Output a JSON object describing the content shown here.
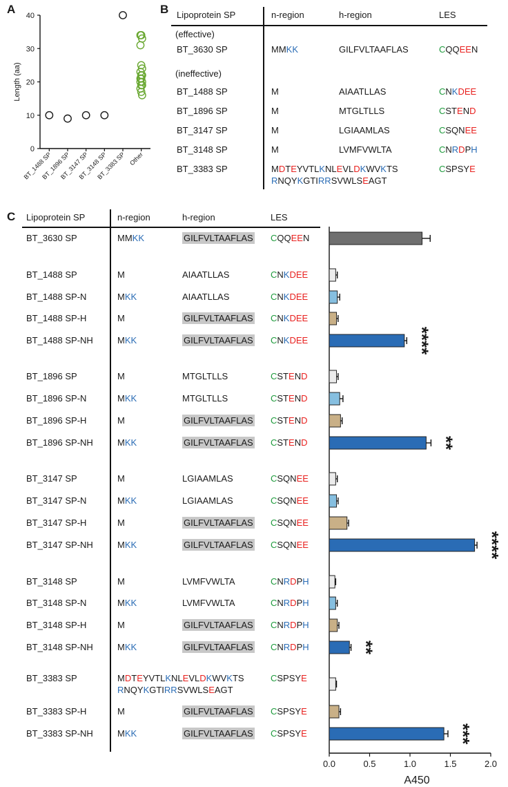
{
  "colors": {
    "positive": "#2a6cb5",
    "negative": "#e8201e",
    "cysteine": "#1e9a3c",
    "highlight": "#c8c8c8",
    "other_points": "#6aa832"
  },
  "panel_a": {
    "label": "A"
  },
  "panel_b": {
    "label": "B"
  },
  "panel_c": {
    "label": "C"
  },
  "chart_data": [
    {
      "type": "scatter",
      "ylabel": "Length (aa)",
      "ylim": [
        0,
        40
      ],
      "yticks": [
        "0",
        "10",
        "20",
        "30",
        "40"
      ],
      "categories": [
        "BT_1488 SP",
        "BT_1896 SP",
        "BT_3147 SP",
        "BT_3148 SP",
        "BT_3383 SP",
        "Other"
      ],
      "points": [
        {
          "category": "BT_1488 SP",
          "values": [
            10
          ]
        },
        {
          "category": "BT_1896 SP",
          "values": [
            9
          ]
        },
        {
          "category": "BT_3147 SP",
          "values": [
            10
          ]
        },
        {
          "category": "BT_3148 SP",
          "values": [
            10
          ]
        },
        {
          "category": "BT_3383 SP",
          "values": [
            40
          ]
        },
        {
          "category": "Other",
          "values": [
            34,
            34,
            33,
            31,
            25,
            24,
            23,
            22,
            22,
            21,
            21,
            20,
            20,
            19,
            19,
            18,
            17,
            16
          ]
        }
      ]
    },
    {
      "type": "bar",
      "orientation": "horizontal",
      "xlabel": "A450",
      "xlim": [
        0,
        2.0
      ],
      "xticks": [
        "0.0",
        "0.5",
        "1.0",
        "1.5",
        "2.0"
      ],
      "categories": [
        "BT_3630 SP",
        "BT_1488 SP",
        "BT_1488 SP-N",
        "BT_1488 SP-H",
        "BT_1488 SP-NH",
        "BT_1896 SP",
        "BT_1896 SP-N",
        "BT_1896 SP-H",
        "BT_1896 SP-NH",
        "BT_3147 SP",
        "BT_3147 SP-N",
        "BT_3147 SP-H",
        "BT_3147 SP-NH",
        "BT_3148 SP",
        "BT_3148 SP-N",
        "BT_3148 SP-H",
        "BT_3148 SP-NH",
        "BT_3383 SP",
        "BT_3383 SP-H",
        "BT_3383 SP-NH"
      ],
      "values": [
        1.15,
        0.08,
        0.1,
        0.09,
        0.93,
        0.09,
        0.13,
        0.14,
        1.2,
        0.08,
        0.09,
        0.22,
        1.8,
        0.07,
        0.08,
        0.1,
        0.25,
        0.08,
        0.12,
        1.42
      ],
      "errors": [
        0.1,
        0.02,
        0.03,
        0.02,
        0.03,
        0.02,
        0.04,
        0.02,
        0.06,
        0.02,
        0.02,
        0.02,
        0.03,
        0.01,
        0.02,
        0.02,
        0.02,
        0.01,
        0.02,
        0.05
      ],
      "bar_colors": [
        "#6f6f6f",
        "#ececec",
        "#86bfe0",
        "#c9b087",
        "#2a6cb5",
        "#ececec",
        "#86bfe0",
        "#c9b087",
        "#2a6cb5",
        "#ececec",
        "#86bfe0",
        "#c9b087",
        "#2a6cb5",
        "#ececec",
        "#86bfe0",
        "#c9b087",
        "#2a6cb5",
        "#ececec",
        "#c9b087",
        "#2a6cb5"
      ],
      "significance": [
        "",
        "",
        "",
        "",
        "****",
        "",
        "",
        "",
        "**",
        "",
        "",
        "",
        "****",
        "",
        "",
        "",
        "**",
        "",
        "",
        "***"
      ]
    }
  ],
  "table_b": {
    "headers": [
      "Lipoprotein SP",
      "n-region",
      "h-region",
      "LES"
    ],
    "group_effective": "(effective)",
    "group_ineffective": "(ineffective)",
    "rows": [
      {
        "name": "BT_3630 SP",
        "n": [
          [
            "MM",
            "k"
          ],
          [
            "KK",
            "p"
          ]
        ],
        "h": [
          [
            "GILFVLTAAFLAS",
            "k"
          ]
        ],
        "les": [
          [
            "C",
            "c"
          ],
          [
            "QQ",
            "k"
          ],
          [
            "EE",
            "n"
          ],
          [
            "N",
            "k"
          ]
        ]
      },
      {
        "name": "BT_1488 SP",
        "n": [
          [
            "M",
            "k"
          ]
        ],
        "h": [
          [
            "AIAATLLAS",
            "k"
          ]
        ],
        "les": [
          [
            "C",
            "c"
          ],
          [
            "N",
            "k"
          ],
          [
            "K",
            "p"
          ],
          [
            "DEE",
            "n"
          ]
        ]
      },
      {
        "name": "BT_1896 SP",
        "n": [
          [
            "M",
            "k"
          ]
        ],
        "h": [
          [
            "MTGLTLLS",
            "k"
          ]
        ],
        "les": [
          [
            "C",
            "c"
          ],
          [
            "ST",
            "k"
          ],
          [
            "E",
            "n"
          ],
          [
            "N",
            "k"
          ],
          [
            "D",
            "n"
          ]
        ]
      },
      {
        "name": "BT_3147 SP",
        "n": [
          [
            "M",
            "k"
          ]
        ],
        "h": [
          [
            "LGIAAMLAS",
            "k"
          ]
        ],
        "les": [
          [
            "C",
            "c"
          ],
          [
            "SQN",
            "k"
          ],
          [
            "EE",
            "n"
          ]
        ]
      },
      {
        "name": "BT_3148 SP",
        "n": [
          [
            "M",
            "k"
          ]
        ],
        "h": [
          [
            "LVMFVWLTA",
            "k"
          ]
        ],
        "les": [
          [
            "C",
            "c"
          ],
          [
            "N",
            "k"
          ],
          [
            "R",
            "p"
          ],
          [
            "D",
            "n"
          ],
          [
            "P",
            "k"
          ],
          [
            "H",
            "p"
          ]
        ]
      },
      {
        "name": "BT_3383 SP",
        "n": [
          [
            "M",
            "k"
          ],
          [
            "D",
            "n"
          ],
          [
            "T",
            "k"
          ],
          [
            "E",
            "n"
          ],
          [
            "YVTL",
            "k"
          ],
          [
            "K",
            "p"
          ],
          [
            "NL",
            "k"
          ],
          [
            "E",
            "n"
          ],
          [
            "VL",
            "k"
          ],
          [
            "D",
            "n"
          ],
          [
            "K",
            "p"
          ],
          [
            "WV",
            "k"
          ],
          [
            "K",
            "p"
          ],
          [
            "TS",
            "k"
          ]
        ],
        "n2": [
          [
            "R",
            "p"
          ],
          [
            "NQY",
            "k"
          ],
          [
            "K",
            "p"
          ],
          [
            "GTI",
            "k"
          ],
          [
            "RR",
            "p"
          ],
          [
            "SVWLS",
            "k"
          ],
          [
            "E",
            "n"
          ],
          [
            "AGT",
            "k"
          ]
        ],
        "les": [
          [
            "C",
            "c"
          ],
          [
            "SPSY",
            "k"
          ],
          [
            "E",
            "n"
          ]
        ]
      }
    ]
  },
  "table_c": {
    "headers": [
      "Lipoprotein SP",
      "n-region",
      "h-region",
      "LES"
    ],
    "rows": [
      {
        "name": "BT_3630 SP",
        "n": [
          [
            "MM",
            "k"
          ],
          [
            "KK",
            "p"
          ]
        ],
        "h": "GILFVLTAAFLAS",
        "hh": true,
        "les": [
          [
            "C",
            "c"
          ],
          [
            "QQ",
            "k"
          ],
          [
            "EE",
            "n"
          ],
          [
            "N",
            "k"
          ]
        ]
      },
      {
        "name": "BT_1488 SP",
        "n": [
          [
            "M",
            "k"
          ]
        ],
        "h": "AIAATLLAS",
        "hh": false,
        "les": [
          [
            "C",
            "c"
          ],
          [
            "N",
            "k"
          ],
          [
            "K",
            "p"
          ],
          [
            "DEE",
            "n"
          ]
        ]
      },
      {
        "name": "BT_1488 SP-N",
        "n": [
          [
            "M",
            "k"
          ],
          [
            "KK",
            "p"
          ]
        ],
        "h": "AIAATLLAS",
        "hh": false,
        "les": [
          [
            "C",
            "c"
          ],
          [
            "N",
            "k"
          ],
          [
            "K",
            "p"
          ],
          [
            "DEE",
            "n"
          ]
        ]
      },
      {
        "name": "BT_1488 SP-H",
        "n": [
          [
            "M",
            "k"
          ]
        ],
        "h": "GILFVLTAAFLAS",
        "hh": true,
        "les": [
          [
            "C",
            "c"
          ],
          [
            "N",
            "k"
          ],
          [
            "K",
            "p"
          ],
          [
            "DEE",
            "n"
          ]
        ]
      },
      {
        "name": "BT_1488 SP-NH",
        "n": [
          [
            "M",
            "k"
          ],
          [
            "KK",
            "p"
          ]
        ],
        "h": "GILFVLTAAFLAS",
        "hh": true,
        "les": [
          [
            "C",
            "c"
          ],
          [
            "N",
            "k"
          ],
          [
            "K",
            "p"
          ],
          [
            "DEE",
            "n"
          ]
        ]
      },
      {
        "name": "BT_1896 SP",
        "n": [
          [
            "M",
            "k"
          ]
        ],
        "h": "MTGLTLLS",
        "hh": false,
        "les": [
          [
            "C",
            "c"
          ],
          [
            "ST",
            "k"
          ],
          [
            "E",
            "n"
          ],
          [
            "N",
            "k"
          ],
          [
            "D",
            "n"
          ]
        ]
      },
      {
        "name": "BT_1896 SP-N",
        "n": [
          [
            "M",
            "k"
          ],
          [
            "KK",
            "p"
          ]
        ],
        "h": "MTGLTLLS",
        "hh": false,
        "les": [
          [
            "C",
            "c"
          ],
          [
            "ST",
            "k"
          ],
          [
            "E",
            "n"
          ],
          [
            "N",
            "k"
          ],
          [
            "D",
            "n"
          ]
        ]
      },
      {
        "name": "BT_1896 SP-H",
        "n": [
          [
            "M",
            "k"
          ]
        ],
        "h": "GILFVLTAAFLAS",
        "hh": true,
        "les": [
          [
            "C",
            "c"
          ],
          [
            "ST",
            "k"
          ],
          [
            "E",
            "n"
          ],
          [
            "N",
            "k"
          ],
          [
            "D",
            "n"
          ]
        ]
      },
      {
        "name": "BT_1896 SP-NH",
        "n": [
          [
            "M",
            "k"
          ],
          [
            "KK",
            "p"
          ]
        ],
        "h": "GILFVLTAAFLAS",
        "hh": true,
        "les": [
          [
            "C",
            "c"
          ],
          [
            "ST",
            "k"
          ],
          [
            "E",
            "n"
          ],
          [
            "N",
            "k"
          ],
          [
            "D",
            "n"
          ]
        ]
      },
      {
        "name": "BT_3147 SP",
        "n": [
          [
            "M",
            "k"
          ]
        ],
        "h": "LGIAAMLAS",
        "hh": false,
        "les": [
          [
            "C",
            "c"
          ],
          [
            "SQN",
            "k"
          ],
          [
            "EE",
            "n"
          ]
        ]
      },
      {
        "name": "BT_3147 SP-N",
        "n": [
          [
            "M",
            "k"
          ],
          [
            "KK",
            "p"
          ]
        ],
        "h": "LGIAAMLAS",
        "hh": false,
        "les": [
          [
            "C",
            "c"
          ],
          [
            "SQN",
            "k"
          ],
          [
            "EE",
            "n"
          ]
        ]
      },
      {
        "name": "BT_3147 SP-H",
        "n": [
          [
            "M",
            "k"
          ]
        ],
        "h": "GILFVLTAAFLAS",
        "hh": true,
        "les": [
          [
            "C",
            "c"
          ],
          [
            "SQN",
            "k"
          ],
          [
            "EE",
            "n"
          ]
        ]
      },
      {
        "name": "BT_3147 SP-NH",
        "n": [
          [
            "M",
            "k"
          ],
          [
            "KK",
            "p"
          ]
        ],
        "h": "GILFVLTAAFLAS",
        "hh": true,
        "les": [
          [
            "C",
            "c"
          ],
          [
            "SQN",
            "k"
          ],
          [
            "EE",
            "n"
          ]
        ]
      },
      {
        "name": "BT_3148 SP",
        "n": [
          [
            "M",
            "k"
          ]
        ],
        "h": "LVMFVWLTA",
        "hh": false,
        "les": [
          [
            "C",
            "c"
          ],
          [
            "N",
            "k"
          ],
          [
            "R",
            "p"
          ],
          [
            "D",
            "n"
          ],
          [
            "P",
            "k"
          ],
          [
            "H",
            "p"
          ]
        ]
      },
      {
        "name": "BT_3148 SP-N",
        "n": [
          [
            "M",
            "k"
          ],
          [
            "KK",
            "p"
          ]
        ],
        "h": "LVMFVWLTA",
        "hh": false,
        "les": [
          [
            "C",
            "c"
          ],
          [
            "N",
            "k"
          ],
          [
            "R",
            "p"
          ],
          [
            "D",
            "n"
          ],
          [
            "P",
            "k"
          ],
          [
            "H",
            "p"
          ]
        ]
      },
      {
        "name": "BT_3148 SP-H",
        "n": [
          [
            "M",
            "k"
          ]
        ],
        "h": "GILFVLTAAFLAS",
        "hh": true,
        "les": [
          [
            "C",
            "c"
          ],
          [
            "N",
            "k"
          ],
          [
            "R",
            "p"
          ],
          [
            "D",
            "n"
          ],
          [
            "P",
            "k"
          ],
          [
            "H",
            "p"
          ]
        ]
      },
      {
        "name": "BT_3148 SP-NH",
        "n": [
          [
            "M",
            "k"
          ],
          [
            "KK",
            "p"
          ]
        ],
        "h": "GILFVLTAAFLAS",
        "hh": true,
        "les": [
          [
            "C",
            "c"
          ],
          [
            "N",
            "k"
          ],
          [
            "R",
            "p"
          ],
          [
            "D",
            "n"
          ],
          [
            "P",
            "k"
          ],
          [
            "H",
            "p"
          ]
        ]
      },
      {
        "name": "BT_3383 SP",
        "long": true,
        "n": [
          [
            "M",
            "k"
          ],
          [
            "D",
            "n"
          ],
          [
            "T",
            "k"
          ],
          [
            "E",
            "n"
          ],
          [
            "YVTL",
            "k"
          ],
          [
            "K",
            "p"
          ],
          [
            "NL",
            "k"
          ],
          [
            "E",
            "n"
          ],
          [
            "VL",
            "k"
          ],
          [
            "D",
            "n"
          ],
          [
            "K",
            "p"
          ],
          [
            "WV",
            "k"
          ],
          [
            "K",
            "p"
          ],
          [
            "TS",
            "k"
          ]
        ],
        "n2": [
          [
            "R",
            "p"
          ],
          [
            "NQY",
            "k"
          ],
          [
            "K",
            "p"
          ],
          [
            "GTI",
            "k"
          ],
          [
            "RR",
            "p"
          ],
          [
            "SVWLS",
            "k"
          ],
          [
            "E",
            "n"
          ],
          [
            "AGT",
            "k"
          ]
        ],
        "h": "",
        "hh": false,
        "les": [
          [
            "C",
            "c"
          ],
          [
            "SPSY",
            "k"
          ],
          [
            "E",
            "n"
          ]
        ]
      },
      {
        "name": "BT_3383 SP-H",
        "n": [
          [
            "M",
            "k"
          ]
        ],
        "h": "GILFVLTAAFLAS",
        "hh": true,
        "les": [
          [
            "C",
            "c"
          ],
          [
            "SPSY",
            "k"
          ],
          [
            "E",
            "n"
          ]
        ]
      },
      {
        "name": "BT_3383 SP-NH",
        "n": [
          [
            "M",
            "k"
          ],
          [
            "KK",
            "p"
          ]
        ],
        "h": "GILFVLTAAFLAS",
        "hh": true,
        "les": [
          [
            "C",
            "c"
          ],
          [
            "SPSY",
            "k"
          ],
          [
            "E",
            "n"
          ]
        ]
      }
    ]
  }
}
